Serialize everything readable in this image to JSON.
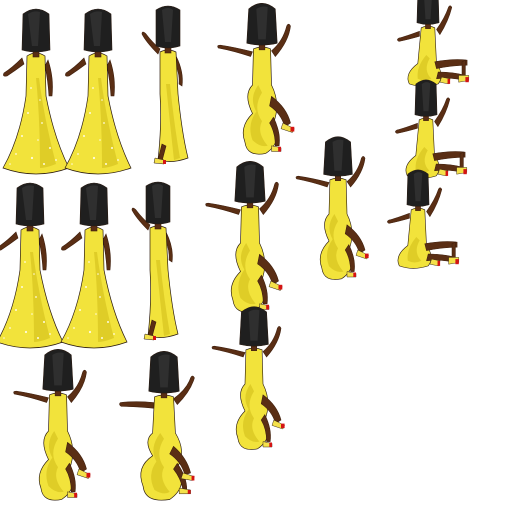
{
  "sheet": {
    "name": "dancer-sprite-sheet",
    "background": "#ffffff"
  },
  "palette": {
    "hair": "#1f1f1f",
    "hair_shine": "#3a3a3a",
    "skin": "#5a2e14",
    "skin_shadow": "#3e1e0c",
    "dress": "#f2e33b",
    "dress_shadow": "#d8c521",
    "sparkle": "#fffbe0",
    "outline": "#2a1a10",
    "shoe_strap": "#f4e14a",
    "shoe_sole": "#d41414"
  },
  "sprites": [
    {
      "id": "stand-front-1",
      "pose": "stand"
    },
    {
      "id": "stand-front-2",
      "pose": "stand"
    },
    {
      "id": "stand-side-1",
      "pose": "side"
    },
    {
      "id": "wave-1",
      "pose": "wave"
    },
    {
      "id": "sit-1",
      "pose": "sit"
    },
    {
      "id": "sit-2",
      "pose": "sit"
    },
    {
      "id": "stand-front-3",
      "pose": "stand"
    },
    {
      "id": "stand-front-4",
      "pose": "stand"
    },
    {
      "id": "stand-side-2",
      "pose": "side"
    },
    {
      "id": "wave-2",
      "pose": "wave"
    },
    {
      "id": "wave-3",
      "pose": "wave"
    },
    {
      "id": "sit-3",
      "pose": "sit"
    },
    {
      "id": "wave-4",
      "pose": "wave"
    },
    {
      "id": "walk-1",
      "pose": "walk"
    },
    {
      "id": "wave-5",
      "pose": "wave"
    }
  ]
}
